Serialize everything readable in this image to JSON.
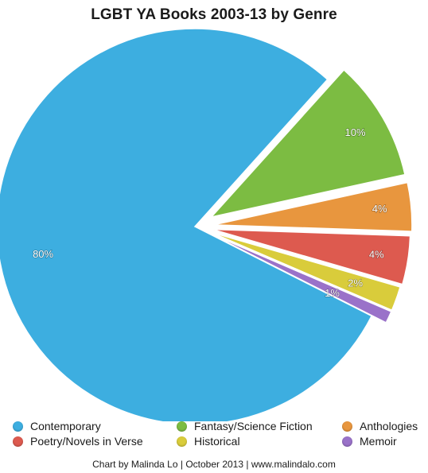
{
  "chart_data": {
    "type": "pie",
    "title": "LGBT YA Books 2003-13 by Genre",
    "slices": [
      {
        "name": "Contemporary",
        "value": 80,
        "label": "80%",
        "color": "#3daee0"
      },
      {
        "name": "Fantasy/Science Fiction",
        "value": 10,
        "label": "10%",
        "color": "#7cbc42"
      },
      {
        "name": "Anthologies",
        "value": 4,
        "label": "4%",
        "color": "#e8963e"
      },
      {
        "name": "Poetry/Novels in Verse",
        "value": 4,
        "label": "4%",
        "color": "#dd5a4f"
      },
      {
        "name": "Historical",
        "value": 2,
        "label": "2%",
        "color": "#d9cc3b"
      },
      {
        "name": "Memoir",
        "value": 1,
        "label": "1%",
        "color": "#9a72c9"
      }
    ],
    "legend": {
      "placement": "bottom",
      "columns": 3
    },
    "credit": "Chart by Malinda Lo | October 2013 | www.malindalo.com"
  }
}
